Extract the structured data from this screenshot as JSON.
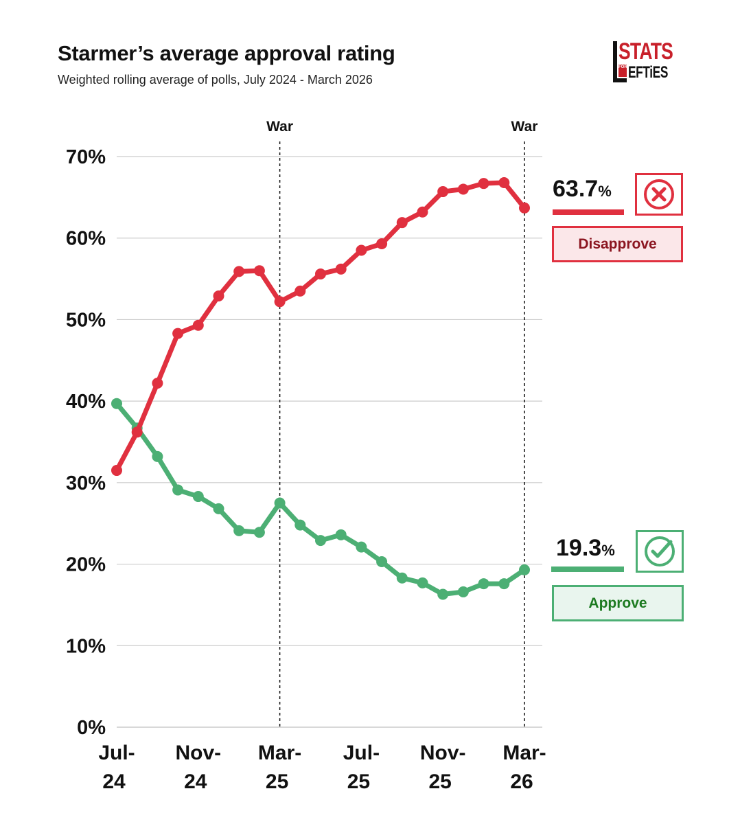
{
  "header": {
    "title": "Starmer’s average approval rating",
    "subtitle": "Weighted rolling average of polls, July 2024 - March 2026"
  },
  "logo": {
    "line1": "STATS",
    "for": "FOR",
    "line2": "EFTiES"
  },
  "colors": {
    "disapprove": "#e0303f",
    "approve": "#4caf74",
    "grid": "#cccccc",
    "disapprove_text": "#8b1520",
    "approve_text": "#1c7a20",
    "disapprove_fill": "#fbe7e9",
    "approve_fill": "#e9f5ee"
  },
  "legend": {
    "disapprove": {
      "value": "63.7",
      "unit": "%",
      "label": "Disapprove",
      "icon": "cross-circle-icon"
    },
    "approve": {
      "value": "19.3",
      "unit": "%",
      "label": "Approve",
      "icon": "check-circle-icon"
    }
  },
  "chart_data": {
    "type": "line",
    "title": "Starmer’s average approval rating",
    "subtitle": "Weighted rolling average of polls, July 2024 - March 2026",
    "ylim": [
      0,
      70
    ],
    "yticks": [
      "0%",
      "10%",
      "20%",
      "30%",
      "40%",
      "50%",
      "60%",
      "70%"
    ],
    "xticks": [
      {
        "index": 0,
        "line1": "Jul-",
        "line2": "24"
      },
      {
        "index": 4,
        "line1": "Nov-",
        "line2": "24"
      },
      {
        "index": 8,
        "line1": "Mar-",
        "line2": "25"
      },
      {
        "index": 12,
        "line1": "Jul-",
        "line2": "25"
      },
      {
        "index": 16,
        "line1": "Nov-",
        "line2": "25"
      },
      {
        "index": 20,
        "line1": "Mar-",
        "line2": "26"
      }
    ],
    "annotations": [
      {
        "index": 8,
        "label": "War"
      },
      {
        "index": 20,
        "label": "War"
      }
    ],
    "series": [
      {
        "name": "Disapprove",
        "values": [
          31.5,
          36.2,
          42.2,
          48.3,
          49.3,
          52.9,
          55.9,
          56.0,
          52.2,
          53.5,
          55.6,
          56.2,
          58.5,
          59.3,
          61.9,
          63.2,
          65.7,
          66.0,
          66.7,
          66.8,
          63.7
        ]
      },
      {
        "name": "Approve",
        "values": [
          39.7,
          36.7,
          33.2,
          29.1,
          28.3,
          26.8,
          24.1,
          23.9,
          27.5,
          24.8,
          22.9,
          23.6,
          22.1,
          20.3,
          18.3,
          17.7,
          16.3,
          16.6,
          17.6,
          17.6,
          19.3
        ]
      }
    ]
  }
}
